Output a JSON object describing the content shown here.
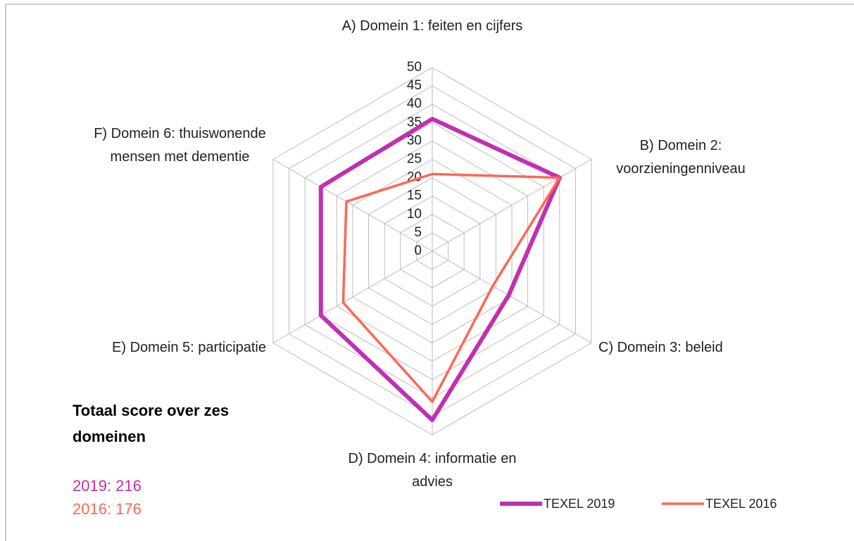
{
  "chart_data": {
    "type": "radar",
    "categories": [
      "A) Domein 1: feiten en cijfers",
      "B) Domein 2: voorzieningenniveau",
      "C) Domein 3: beleid",
      "D) Domein 4: informatie en advies",
      "E) Domein 5: participatie",
      "F) Domein 6: thuiswonende mensen met dementie"
    ],
    "series": [
      {
        "name": "TEXEL 2019",
        "color": "#c030b0",
        "values": [
          36,
          40,
          24,
          46,
          35,
          35
        ]
      },
      {
        "name": "TEXEL 2016",
        "color": "#ff6655",
        "values": [
          21,
          40,
          19,
          41,
          28,
          27
        ]
      }
    ],
    "ylim": [
      0,
      50
    ],
    "yticks": [
      0,
      5,
      10,
      15,
      20,
      25,
      30,
      35,
      40,
      45,
      50
    ],
    "grid": true,
    "legend": "bottom-right",
    "annotations": {
      "title": "Totaal score over zes domeinen",
      "lines": [
        {
          "text": "2019: 216",
          "color": "#c030b0"
        },
        {
          "text": "2016: 176",
          "color": "#ff6655"
        }
      ]
    }
  }
}
